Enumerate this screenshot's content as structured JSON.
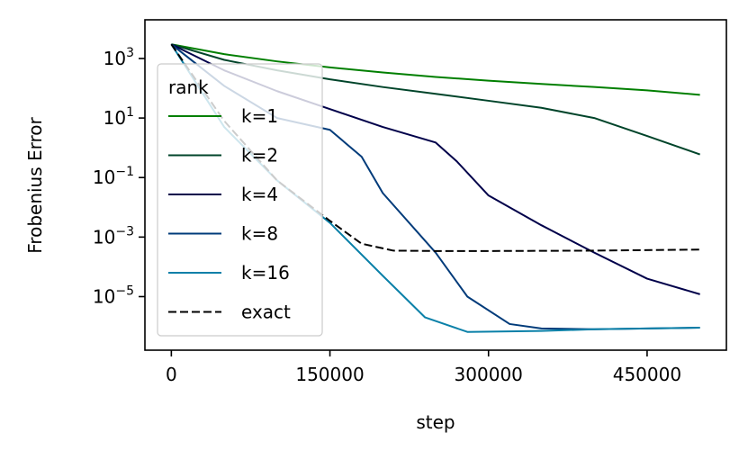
{
  "chart_data": {
    "type": "line",
    "xlabel": "step",
    "ylabel": "Frobenius Error",
    "xlim": [
      -25000,
      525000
    ],
    "ylim_log10": [
      -6.8,
      4.3
    ],
    "y_scale": "log",
    "x_ticks": [
      0,
      150000,
      300000,
      450000
    ],
    "x_tick_labels": [
      "0",
      "150000",
      "300000",
      "450000"
    ],
    "y_ticks_log10": [
      3,
      1,
      -1,
      -3,
      -5
    ],
    "y_tick_bases": [
      "10",
      "10",
      "10",
      "10",
      "10"
    ],
    "y_tick_exponents": [
      "3",
      "1",
      "−1",
      "−3",
      "−5"
    ],
    "legend": {
      "title": "rank",
      "placement": "upper-left"
    },
    "grid": false,
    "series": [
      {
        "name": "k=1",
        "color": "#007f00",
        "dash": "solid",
        "points": [
          [
            0,
            3000
          ],
          [
            50000,
            1400
          ],
          [
            100000,
            800
          ],
          [
            150000,
            500
          ],
          [
            200000,
            340
          ],
          [
            250000,
            240
          ],
          [
            300000,
            180
          ],
          [
            350000,
            140
          ],
          [
            400000,
            110
          ],
          [
            450000,
            85
          ],
          [
            500000,
            60
          ]
        ]
      },
      {
        "name": "k=2",
        "color": "#00442a",
        "dash": "solid",
        "points": [
          [
            0,
            3000
          ],
          [
            50000,
            900
          ],
          [
            100000,
            400
          ],
          [
            150000,
            200
          ],
          [
            200000,
            110
          ],
          [
            250000,
            65
          ],
          [
            300000,
            38
          ],
          [
            350000,
            22
          ],
          [
            400000,
            10
          ],
          [
            450000,
            2.5
          ],
          [
            500000,
            0.6
          ]
        ]
      },
      {
        "name": "k=4",
        "color": "#00004a",
        "dash": "solid",
        "points": [
          [
            0,
            3000
          ],
          [
            50000,
            400
          ],
          [
            100000,
            80
          ],
          [
            150000,
            20
          ],
          [
            200000,
            5
          ],
          [
            250000,
            1.5
          ],
          [
            270000,
            0.35
          ],
          [
            300000,
            0.025
          ],
          [
            350000,
            0.0025
          ],
          [
            400000,
            0.0003
          ],
          [
            450000,
            4e-05
          ],
          [
            500000,
            1.2e-05
          ]
        ]
      },
      {
        "name": "k=8",
        "color": "#003b7a",
        "dash": "solid",
        "points": [
          [
            0,
            3000
          ],
          [
            50000,
            120
          ],
          [
            100000,
            10
          ],
          [
            150000,
            4
          ],
          [
            180000,
            0.5
          ],
          [
            200000,
            0.03
          ],
          [
            250000,
            0.0003
          ],
          [
            280000,
            1e-05
          ],
          [
            320000,
            1.2e-06
          ],
          [
            350000,
            8.5e-07
          ],
          [
            400000,
            8e-07
          ],
          [
            500000,
            9e-07
          ]
        ]
      },
      {
        "name": "k=16",
        "color": "#0a80a8",
        "dash": "solid",
        "points": [
          [
            0,
            3000
          ],
          [
            50000,
            5
          ],
          [
            100000,
            0.08
          ],
          [
            150000,
            0.003
          ],
          [
            200000,
            5e-05
          ],
          [
            240000,
            2e-06
          ],
          [
            280000,
            6.5e-07
          ],
          [
            350000,
            7e-07
          ],
          [
            400000,
            8e-07
          ],
          [
            450000,
            8.5e-07
          ],
          [
            500000,
            9e-07
          ]
        ]
      },
      {
        "name": "exact",
        "color": "#000000",
        "dash": "dashed",
        "points": [
          [
            0,
            3000
          ],
          [
            50000,
            8
          ],
          [
            100000,
            0.08
          ],
          [
            150000,
            0.0035
          ],
          [
            180000,
            0.0006
          ],
          [
            210000,
            0.00035
          ],
          [
            250000,
            0.00034
          ],
          [
            300000,
            0.00034
          ],
          [
            400000,
            0.00035
          ],
          [
            500000,
            0.00038
          ]
        ]
      }
    ]
  }
}
